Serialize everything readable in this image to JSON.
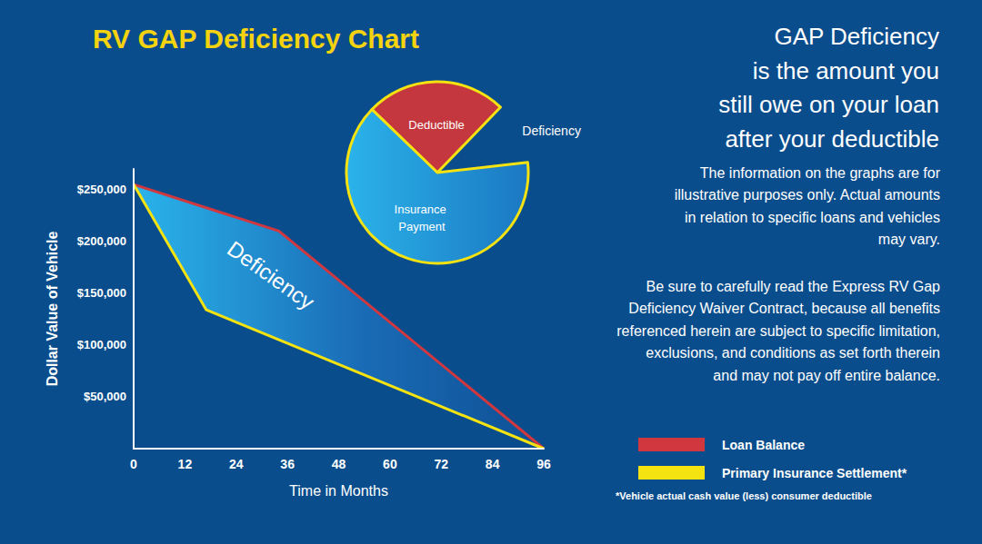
{
  "chart_data": [
    {
      "type": "line",
      "title": "RV GAP Deficiency Chart",
      "x_label": "Time in Months",
      "y_label": "Dollar Value of Vehicle",
      "series": [
        {
          "name": "Loan Balance",
          "color": "#d0373f",
          "x": [
            0,
            34,
            96
          ],
          "values": [
            255000,
            210000,
            0
          ]
        },
        {
          "name": "Primary Insurance Settlement*",
          "color": "#f5e211",
          "x": [
            0,
            17,
            96
          ],
          "values": [
            255000,
            134000,
            0
          ]
        }
      ],
      "xlim": [
        0,
        96
      ],
      "xticks": [
        0,
        12,
        24,
        36,
        48,
        60,
        72,
        84,
        96
      ],
      "ylim": [
        0,
        270000
      ],
      "yticks": [
        {
          "value": 50000,
          "label": "$50,000"
        },
        {
          "value": 100000,
          "label": "$100,000"
        },
        {
          "value": 150000,
          "label": "$150,000"
        },
        {
          "value": 200000,
          "label": "$200,000"
        },
        {
          "value": 250000,
          "label": "$250,000"
        }
      ],
      "grid": false,
      "legend": "bottom-right",
      "annotations": {
        "area_label": "Deficiency",
        "headline": [
          "GAP Deficiency",
          "is the amount you",
          "still owe on your loan",
          "after your deductible"
        ],
        "notes": [
          [
            "The information on the graphs are for",
            "illustrative purposes only. Actual amounts",
            "in relation to specific loans and vehicles",
            "may vary."
          ],
          [
            "Be sure to carefully read the Express RV Gap",
            "Deficiency Waiver Contract, because all benefits",
            "referenced herein are subject to specific limitation,",
            "exclusions, and conditions as set forth therein",
            "and may not pay off entire balance."
          ]
        ],
        "footnote": "*Vehicle actual cash value (less) consumer deductible"
      }
    },
    {
      "type": "pie",
      "categories": [
        "Deductible",
        "Deficiency",
        "Insurance Payment"
      ],
      "values": [
        25,
        11,
        64
      ],
      "colors": [
        "#c4373e",
        "transparent",
        "#1b78c2"
      ]
    }
  ]
}
